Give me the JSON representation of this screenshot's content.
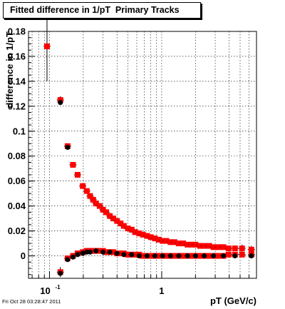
{
  "title": "Fitted difference in 1/pT  Primary Tracks",
  "footer": "Fri Oct 28 03:28:47 2011",
  "colors": {
    "series_red": "#ff0000",
    "series_black": "#000000",
    "frame": "#000000",
    "grid": "#000000"
  },
  "chart_data": {
    "type": "scatter",
    "xlabel": "pT (GeV/c)",
    "ylabel": "difference in 1/pT",
    "xscale": "log",
    "xlim": [
      0.065,
      7.0
    ],
    "ylim": [
      -0.018,
      0.18
    ],
    "grid": true,
    "x_tick_labels": [
      {
        "value": 0.1,
        "base": "10",
        "exp": "-1"
      },
      {
        "value": 1,
        "base": "1",
        "exp": ""
      }
    ],
    "y_ticks": [
      0,
      0.02,
      0.04,
      0.06,
      0.08,
      0.1,
      0.12,
      0.14,
      0.16,
      0.18
    ],
    "y_tick_labels": [
      "0",
      "0.02",
      "0.04",
      "0.06",
      "0.08",
      "0.1",
      "0.12",
      "0.14",
      "0.16",
      "0.18"
    ],
    "series": [
      {
        "marker": "square",
        "color": "#ff0000",
        "x": [
          0.095,
          0.125,
          0.145,
          0.162,
          0.178,
          0.198,
          0.215,
          0.23,
          0.245,
          0.26,
          0.28,
          0.3,
          0.32,
          0.345,
          0.37,
          0.4,
          0.43,
          0.46,
          0.5,
          0.54,
          0.58,
          0.63,
          0.68,
          0.74,
          0.8,
          0.87,
          0.94,
          1.02,
          1.1,
          1.2,
          1.3,
          1.42,
          1.55,
          1.7,
          1.85,
          2.0,
          2.2,
          2.4,
          2.65,
          2.9,
          3.2,
          3.55,
          3.95,
          4.5,
          5.2,
          6.3
        ],
        "y": [
          0.168,
          0.125,
          0.088,
          0.073,
          0.065,
          0.056,
          0.052,
          0.048,
          0.045,
          0.042,
          0.04,
          0.037,
          0.035,
          0.032,
          0.03,
          0.028,
          0.026,
          0.024,
          0.022,
          0.021,
          0.019,
          0.018,
          0.017,
          0.016,
          0.015,
          0.014,
          0.013,
          0.012,
          0.012,
          0.011,
          0.011,
          0.01,
          0.01,
          0.009,
          0.009,
          0.009,
          0.008,
          0.008,
          0.008,
          0.007,
          0.007,
          0.007,
          0.006,
          0.006,
          0.006,
          0.005
        ],
        "y_err": [
          0.028,
          0.003,
          0.002,
          0.002,
          0.001,
          0.001,
          0.001,
          0.001,
          0.001,
          0.001,
          0.001,
          0.001,
          0.001,
          0.001,
          0.001,
          0.001,
          0.001,
          0.001,
          0.001,
          0.001,
          0.001,
          0.001,
          0.001,
          0.001,
          0.001,
          0.001,
          0.001,
          0.001,
          0.001,
          0.001,
          0.001,
          0.001,
          0.001,
          0.001,
          0.001,
          0.001,
          0.001,
          0.001,
          0.001,
          0.001,
          0.001,
          0.001,
          0.001,
          0.001,
          0.003,
          0.003
        ]
      },
      {
        "marker": "square",
        "color": "#ff0000",
        "x": [
          0.125,
          0.145,
          0.162,
          0.178,
          0.198,
          0.215,
          0.23,
          0.245,
          0.26,
          0.28,
          0.3,
          0.32,
          0.345,
          0.37,
          0.4,
          0.43,
          0.46,
          0.5,
          0.54,
          0.58,
          0.63,
          0.68,
          0.74,
          0.8,
          0.87,
          0.94,
          1.02,
          1.1,
          1.2,
          1.3,
          1.42,
          1.55,
          1.7,
          1.85,
          2.0,
          2.2,
          2.4,
          2.65,
          2.9,
          3.2,
          3.55,
          3.95,
          4.5,
          5.2,
          6.3
        ],
        "y": [
          -0.013,
          -0.002,
          0.0,
          0.002,
          0.003,
          0.004,
          0.004,
          0.004,
          0.004,
          0.004,
          0.004,
          0.003,
          0.003,
          0.003,
          0.002,
          0.002,
          0.002,
          0.001,
          0.001,
          0.001,
          0.001,
          0.0,
          0.0,
          0.0,
          0.0,
          0.0,
          0.0,
          0.0,
          0.0,
          0.0,
          0.0,
          0.0,
          0.0,
          0.0,
          0.0,
          0.0,
          0.0,
          0.0,
          0.0,
          0.0,
          0.0,
          0.001,
          0.001,
          0.001,
          0.001
        ],
        "y_err": [
          0.004,
          0.002,
          0.001,
          0.001,
          0.001,
          0.001,
          0.001,
          0.001,
          0.001,
          0.001,
          0.001,
          0.001,
          0.001,
          0.001,
          0.001,
          0.001,
          0.001,
          0.001,
          0.001,
          0.001,
          0.001,
          0.001,
          0.001,
          0.001,
          0.001,
          0.001,
          0.001,
          0.001,
          0.001,
          0.001,
          0.001,
          0.001,
          0.001,
          0.001,
          0.001,
          0.001,
          0.001,
          0.001,
          0.001,
          0.001,
          0.001,
          0.001,
          0.001,
          0.002,
          0.003
        ]
      },
      {
        "marker": "circle",
        "color": "#000000",
        "x": [
          0.125,
          0.145,
          0.162,
          0.178,
          0.198,
          0.215,
          0.23,
          0.26,
          0.3,
          0.345,
          0.4,
          0.46,
          0.54,
          0.63,
          0.74,
          0.87,
          1.02,
          1.2,
          1.42,
          1.7,
          2.0,
          2.4,
          2.9,
          3.55,
          4.5,
          6.3
        ],
        "y": [
          -0.014,
          -0.003,
          -0.001,
          0.001,
          0.002,
          0.003,
          0.003,
          0.004,
          0.003,
          0.003,
          0.002,
          0.001,
          0.001,
          0.0,
          0.0,
          0.0,
          0.0,
          0.0,
          0.0,
          0.0,
          0.0,
          0.0,
          0.0,
          0.0,
          0.0,
          0.0
        ]
      },
      {
        "marker": "circle",
        "color": "#000000",
        "x": [
          0.125,
          0.145
        ],
        "y": [
          0.123,
          0.087
        ]
      }
    ]
  }
}
